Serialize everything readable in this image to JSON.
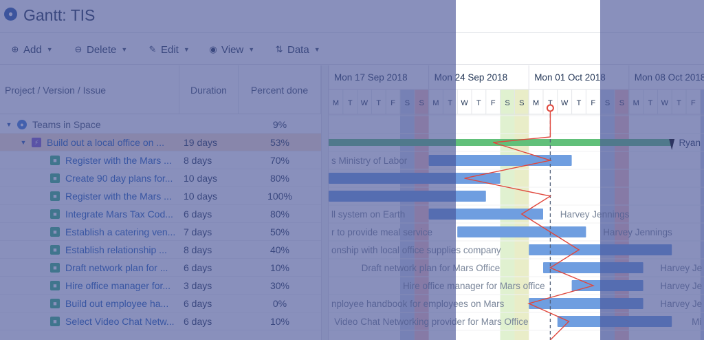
{
  "app": {
    "title": "Gantt:  TIS"
  },
  "toolbar": {
    "add": "Add",
    "delete": "Delete",
    "edit": "Edit",
    "view": "View",
    "data": "Data"
  },
  "columns": {
    "project": "Project / Version / Issue",
    "duration": "Duration",
    "percent": "Percent done"
  },
  "rows": [
    {
      "name": "Teams in Space",
      "duration": "",
      "percent": "9%",
      "level": 0,
      "icon": "globe-icon"
    },
    {
      "name": "Build out a local office on ...",
      "duration": "19 days",
      "percent": "53%",
      "level": 1,
      "icon": "epic-icon"
    },
    {
      "name": "Register with the Mars ...",
      "duration": "8 days",
      "percent": "70%",
      "level": 2,
      "icon": "story-icon"
    },
    {
      "name": "Create 90 day plans for...",
      "duration": "10 days",
      "percent": "80%",
      "level": 2,
      "icon": "story-icon"
    },
    {
      "name": "Register with the Mars ...",
      "duration": "10 days",
      "percent": "100%",
      "level": 2,
      "icon": "story-icon"
    },
    {
      "name": "Integrate Mars Tax Cod...",
      "duration": "6 days",
      "percent": "80%",
      "level": 2,
      "icon": "story-icon"
    },
    {
      "name": "Establish a catering ven...",
      "duration": "7 days",
      "percent": "50%",
      "level": 2,
      "icon": "story-icon"
    },
    {
      "name": "Establish relationship ...",
      "duration": "8 days",
      "percent": "40%",
      "level": 2,
      "icon": "story-icon"
    },
    {
      "name": "Draft network plan for ...",
      "duration": "6 days",
      "percent": "10%",
      "level": 2,
      "icon": "story-icon"
    },
    {
      "name": "Hire office manager for...",
      "duration": "3 days",
      "percent": "30%",
      "level": 2,
      "icon": "story-icon"
    },
    {
      "name": "Build out employee ha...",
      "duration": "6 days",
      "percent": "0%",
      "level": 2,
      "icon": "story-icon"
    },
    {
      "name": "Select Video Chat Netw...",
      "duration": "6 days",
      "percent": "10%",
      "level": 2,
      "icon": "story-icon"
    }
  ],
  "timeline": {
    "weeks": [
      "Mon 17 Sep 2018",
      "Mon 24 Sep 2018",
      "Mon 01 Oct 2018",
      "Mon 08 Oct 2018"
    ],
    "day_letters": [
      "M",
      "T",
      "W",
      "T",
      "F",
      "S",
      "S"
    ],
    "bar_labels": [
      {
        "row": 1,
        "text": "Ryan"
      },
      {
        "row": 2,
        "text": "s Ministry of Labor"
      },
      {
        "row": 5,
        "text": "ll system on Earth"
      },
      {
        "row": 5,
        "text": "Harvey Jennings"
      },
      {
        "row": 6,
        "text": "r to provide meal service"
      },
      {
        "row": 6,
        "text": "Harvey Jennings"
      },
      {
        "row": 7,
        "text": "onship with local office supplies company"
      },
      {
        "row": 8,
        "text": "Draft network plan for Mars Office"
      },
      {
        "row": 8,
        "text": "Harvey Je"
      },
      {
        "row": 9,
        "text": "Hire office manager for Mars office"
      },
      {
        "row": 9,
        "text": "Harvey Je"
      },
      {
        "row": 10,
        "text": "nployee handbook for employees on Mars"
      },
      {
        "row": 10,
        "text": "Harvey Je"
      },
      {
        "row": 11,
        "text": "Video Chat Networking provider for Mars Office"
      },
      {
        "row": 11,
        "text": "Mi"
      }
    ]
  },
  "colors": {
    "bar": "#6f9ee0",
    "bar_done": "#3d6fc4",
    "summary": "#61c07a",
    "progress_line": "#e0473c",
    "weekend_sat": "#c9d6ea",
    "weekend_sun": "#f6c1c1",
    "today_col": "#e6f7c9",
    "overlay": "#4652a0"
  }
}
